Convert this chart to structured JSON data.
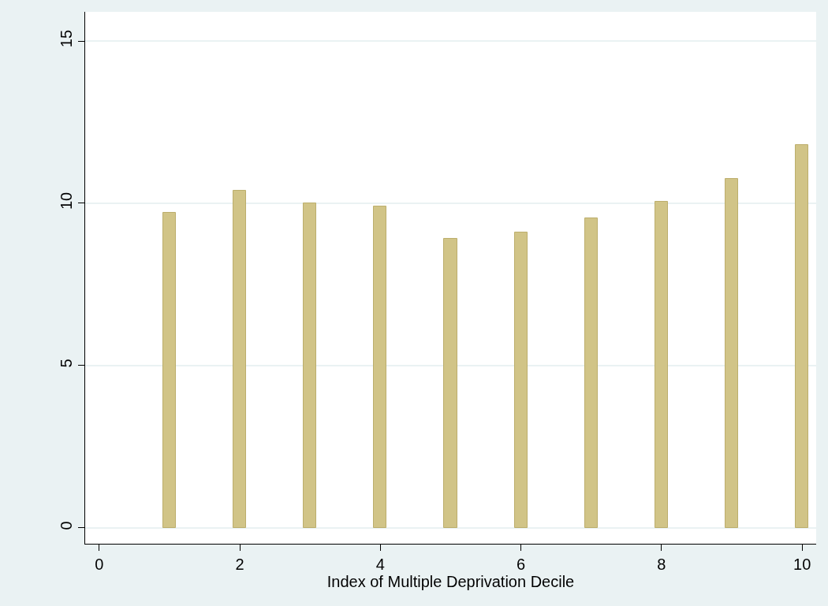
{
  "chart_data": {
    "type": "bar",
    "xlabel": "Index of Multiple Deprivation Decile",
    "x": [
      1,
      2,
      3,
      4,
      5,
      6,
      7,
      8,
      9,
      10
    ],
    "values": [
      9.7,
      10.4,
      10.0,
      9.9,
      8.9,
      9.1,
      9.55,
      10.05,
      10.75,
      11.8
    ],
    "color": "#d1c487",
    "xlim": [
      -0.2,
      10.2
    ],
    "xticks": [
      0,
      2,
      4,
      6,
      8,
      10
    ],
    "ylim": [
      -0.49,
      15.9
    ],
    "yticks": [
      0,
      5,
      10,
      15
    ],
    "grid": "y",
    "legend": false
  }
}
